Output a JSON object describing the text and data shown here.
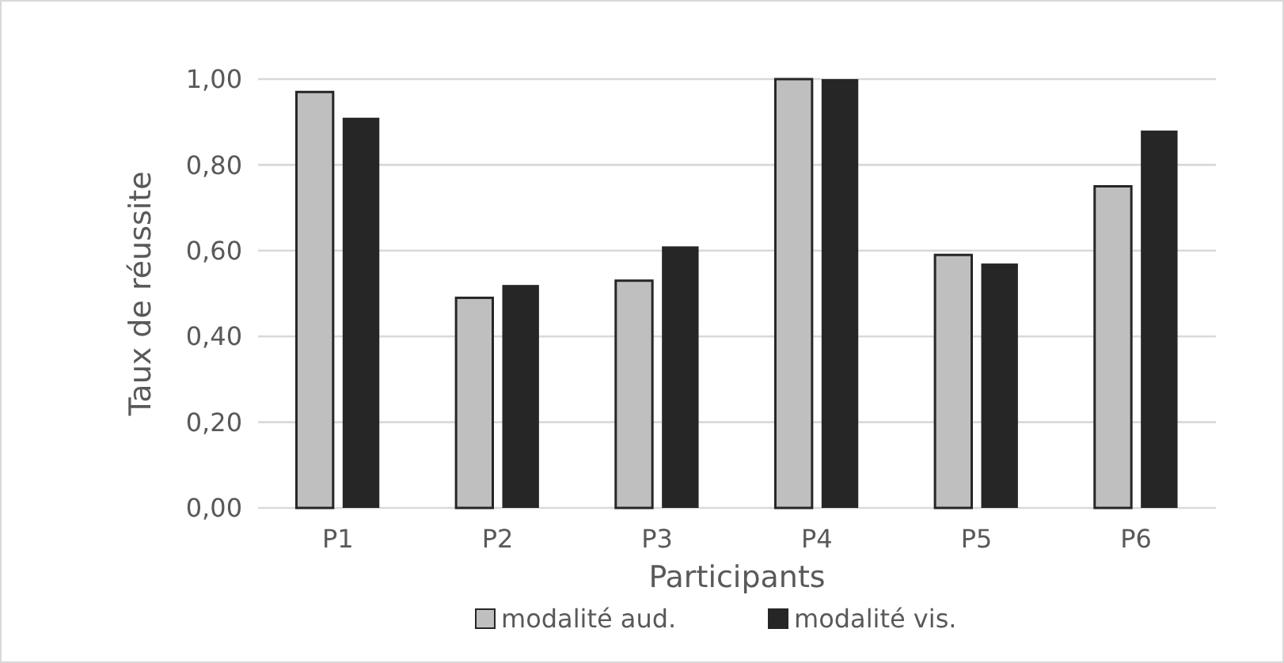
{
  "chart_data": {
    "type": "bar",
    "xlabel": "Participants",
    "ylabel": "Taux de réussite",
    "categories": [
      "P1",
      "P2",
      "P3",
      "P4",
      "P5",
      "P6"
    ],
    "series": [
      {
        "name": "modalité aud.",
        "color": "#bfbfbf",
        "values": [
          0.97,
          0.49,
          0.53,
          1.0,
          0.59,
          0.75
        ]
      },
      {
        "name": "modalité vis.",
        "color": "#262626",
        "values": [
          0.91,
          0.52,
          0.61,
          1.0,
          0.57,
          0.88
        ]
      }
    ],
    "ylim": [
      0,
      1
    ],
    "yticks": [
      {
        "value": 0,
        "label": "0,00"
      },
      {
        "value": 0.2,
        "label": "0,20"
      },
      {
        "value": 0.4,
        "label": "0,40"
      },
      {
        "value": 0.6,
        "label": "0,60"
      },
      {
        "value": 0.8,
        "label": "0,80"
      },
      {
        "value": 1,
        "label": "1,00"
      }
    ],
    "grid": "y",
    "legend": "bottom"
  }
}
